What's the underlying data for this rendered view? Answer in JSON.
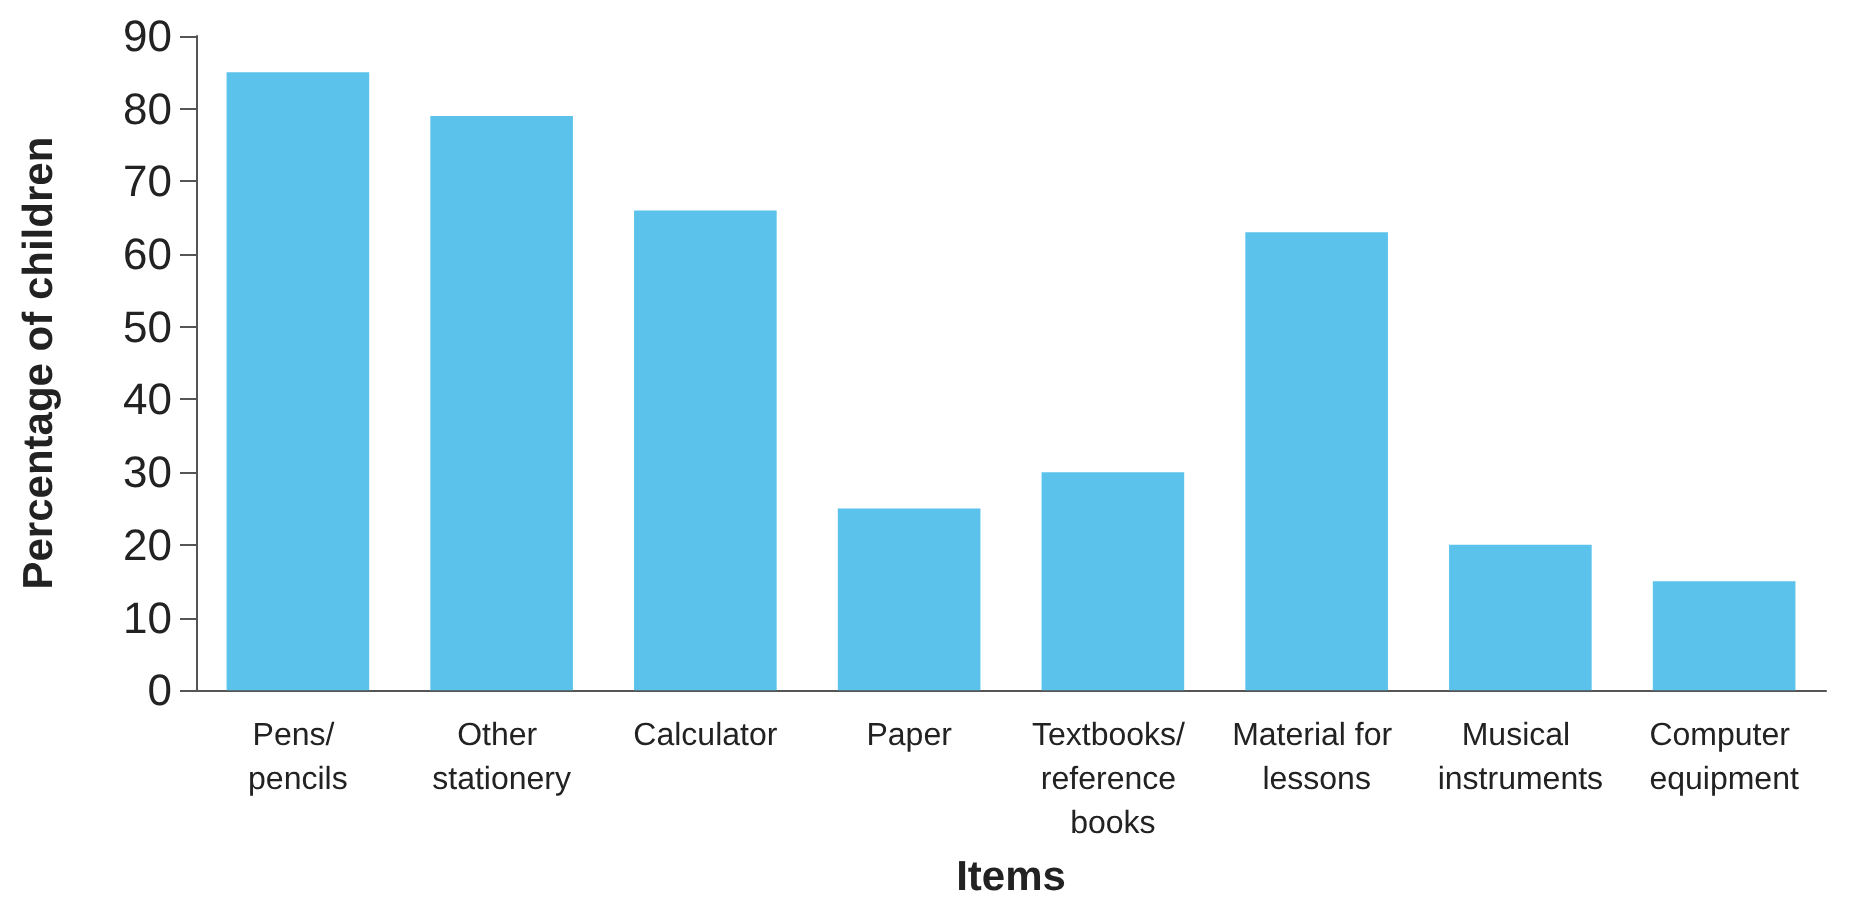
{
  "chart_data": {
    "type": "bar",
    "xlabel": "Items",
    "ylabel": "Percentage of children",
    "categories": [
      "Pens/ pencils",
      "Other stationery",
      "Calculator",
      "Paper",
      "Textbooks/ reference books",
      "Material for lessons",
      "Musical instruments",
      "Computer equipment"
    ],
    "values": [
      85,
      79,
      66,
      25,
      30,
      63,
      20,
      15
    ],
    "color": "#5bc3eb",
    "ylim": [
      0,
      90
    ],
    "yticks": [
      0,
      10,
      20,
      30,
      40,
      50,
      60,
      70,
      80,
      90
    ],
    "grid": false
  }
}
